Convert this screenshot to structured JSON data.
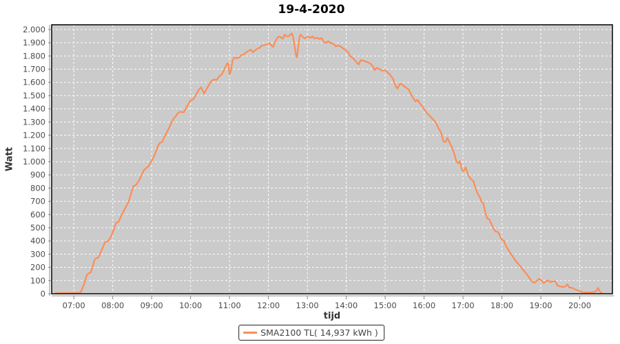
{
  "colors": {
    "page_bg": "#ffffff",
    "plot_bg": "#cbcbcb",
    "grid": "#ffffff",
    "line": "#fb8d55",
    "tick_text": "#4a4a4a",
    "axis_line": "#888888",
    "plot_border": "#000000"
  },
  "chart_data": {
    "type": "line",
    "title": "19-4-2020",
    "xlabel": "tijd",
    "ylabel": "Watt",
    "x_axis": {
      "min_hour": 6.43,
      "max_hour": 20.84,
      "tick_hours": [
        7,
        8,
        9,
        10,
        11,
        12,
        13,
        14,
        15,
        16,
        17,
        18,
        19,
        20
      ],
      "tick_labels": [
        "07:00",
        "08:00",
        "09:00",
        "10:00",
        "11:00",
        "12:00",
        "13:00",
        "14:00",
        "15:00",
        "16:00",
        "17:00",
        "18:00",
        "19:00",
        "20:00"
      ]
    },
    "y_axis": {
      "min": 0,
      "max": 2036,
      "tick_values": [
        0,
        100,
        200,
        300,
        400,
        500,
        600,
        700,
        800,
        900,
        1000,
        1100,
        1200,
        1300,
        1400,
        1500,
        1600,
        1700,
        1800,
        1900,
        2000
      ],
      "tick_labels": [
        "0",
        "100",
        "200",
        "300",
        "400",
        "500",
        "600",
        "700",
        "800",
        "900",
        "1.000",
        "1.100",
        "1.200",
        "1.300",
        "1.400",
        "1.500",
        "1.600",
        "1.700",
        "1.800",
        "1.900",
        "2.000"
      ]
    },
    "grid": {
      "horizontal": true,
      "vertical": true,
      "style": "white-dashed"
    },
    "legend": {
      "position": "bottom-center",
      "label": "SMA2100 TL( 14,937 kWh )"
    },
    "series": [
      {
        "name": "SMA2100 TL( 14,937 kWh )",
        "color": "#fb8d55",
        "points": [
          [
            6.53,
            5
          ],
          [
            6.7,
            5
          ],
          [
            6.9,
            5
          ],
          [
            7.05,
            5
          ],
          [
            7.17,
            8
          ],
          [
            7.22,
            40
          ],
          [
            7.27,
            80
          ],
          [
            7.3,
            105
          ],
          [
            7.33,
            140
          ],
          [
            7.38,
            155
          ],
          [
            7.43,
            160
          ],
          [
            7.48,
            200
          ],
          [
            7.53,
            255
          ],
          [
            7.58,
            270
          ],
          [
            7.63,
            275
          ],
          [
            7.7,
            320
          ],
          [
            7.75,
            355
          ],
          [
            7.8,
            390
          ],
          [
            7.88,
            398
          ],
          [
            7.95,
            430
          ],
          [
            8.0,
            465
          ],
          [
            8.05,
            505
          ],
          [
            8.08,
            535
          ],
          [
            8.15,
            545
          ],
          [
            8.22,
            590
          ],
          [
            8.28,
            625
          ],
          [
            8.35,
            665
          ],
          [
            8.42,
            705
          ],
          [
            8.48,
            770
          ],
          [
            8.53,
            815
          ],
          [
            8.6,
            825
          ],
          [
            8.68,
            860
          ],
          [
            8.75,
            905
          ],
          [
            8.8,
            935
          ],
          [
            8.85,
            950
          ],
          [
            8.92,
            965
          ],
          [
            9.0,
            1005
          ],
          [
            9.08,
            1055
          ],
          [
            9.15,
            1110
          ],
          [
            9.2,
            1140
          ],
          [
            9.27,
            1150
          ],
          [
            9.35,
            1200
          ],
          [
            9.43,
            1245
          ],
          [
            9.5,
            1290
          ],
          [
            9.55,
            1320
          ],
          [
            9.62,
            1345
          ],
          [
            9.68,
            1370
          ],
          [
            9.75,
            1378
          ],
          [
            9.82,
            1372
          ],
          [
            9.88,
            1405
          ],
          [
            9.95,
            1440
          ],
          [
            10.0,
            1465
          ],
          [
            10.07,
            1472
          ],
          [
            10.13,
            1500
          ],
          [
            10.2,
            1540
          ],
          [
            10.27,
            1562
          ],
          [
            10.3,
            1545
          ],
          [
            10.35,
            1515
          ],
          [
            10.42,
            1555
          ],
          [
            10.48,
            1585
          ],
          [
            10.53,
            1610
          ],
          [
            10.6,
            1622
          ],
          [
            10.67,
            1618
          ],
          [
            10.73,
            1645
          ],
          [
            10.8,
            1660
          ],
          [
            10.87,
            1700
          ],
          [
            10.93,
            1740
          ],
          [
            10.97,
            1745
          ],
          [
            11.0,
            1660
          ],
          [
            11.03,
            1680
          ],
          [
            11.08,
            1765
          ],
          [
            11.12,
            1790
          ],
          [
            11.18,
            1782
          ],
          [
            11.25,
            1790
          ],
          [
            11.3,
            1805
          ],
          [
            11.37,
            1812
          ],
          [
            11.43,
            1828
          ],
          [
            11.5,
            1840
          ],
          [
            11.55,
            1848
          ],
          [
            11.6,
            1828
          ],
          [
            11.65,
            1840
          ],
          [
            11.72,
            1856
          ],
          [
            11.78,
            1862
          ],
          [
            11.83,
            1878
          ],
          [
            11.9,
            1882
          ],
          [
            11.97,
            1888
          ],
          [
            12.03,
            1898
          ],
          [
            12.08,
            1878
          ],
          [
            12.12,
            1868
          ],
          [
            12.18,
            1910
          ],
          [
            12.23,
            1938
          ],
          [
            12.28,
            1948
          ],
          [
            12.33,
            1938
          ],
          [
            12.37,
            1930
          ],
          [
            12.42,
            1962
          ],
          [
            12.45,
            1950
          ],
          [
            12.5,
            1948
          ],
          [
            12.55,
            1955
          ],
          [
            12.6,
            1972
          ],
          [
            12.63,
            1950
          ],
          [
            12.67,
            1880
          ],
          [
            12.7,
            1820
          ],
          [
            12.73,
            1790
          ],
          [
            12.77,
            1872
          ],
          [
            12.8,
            1945
          ],
          [
            12.83,
            1962
          ],
          [
            12.88,
            1945
          ],
          [
            12.93,
            1932
          ],
          [
            12.98,
            1940
          ],
          [
            13.03,
            1945
          ],
          [
            13.08,
            1938
          ],
          [
            13.13,
            1948
          ],
          [
            13.18,
            1932
          ],
          [
            13.25,
            1938
          ],
          [
            13.3,
            1928
          ],
          [
            13.37,
            1934
          ],
          [
            13.43,
            1905
          ],
          [
            13.48,
            1898
          ],
          [
            13.53,
            1912
          ],
          [
            13.6,
            1898
          ],
          [
            13.67,
            1893
          ],
          [
            13.73,
            1872
          ],
          [
            13.8,
            1880
          ],
          [
            13.87,
            1868
          ],
          [
            13.93,
            1855
          ],
          [
            14.0,
            1840
          ],
          [
            14.05,
            1828
          ],
          [
            14.1,
            1800
          ],
          [
            14.15,
            1788
          ],
          [
            14.2,
            1775
          ],
          [
            14.27,
            1750
          ],
          [
            14.32,
            1735
          ],
          [
            14.37,
            1768
          ],
          [
            14.43,
            1765
          ],
          [
            14.5,
            1758
          ],
          [
            14.57,
            1750
          ],
          [
            14.63,
            1740
          ],
          [
            14.68,
            1722
          ],
          [
            14.73,
            1693
          ],
          [
            14.78,
            1710
          ],
          [
            14.85,
            1702
          ],
          [
            14.92,
            1688
          ],
          [
            14.98,
            1692
          ],
          [
            15.05,
            1680
          ],
          [
            15.12,
            1660
          ],
          [
            15.2,
            1628
          ],
          [
            15.27,
            1572
          ],
          [
            15.32,
            1553
          ],
          [
            15.38,
            1592
          ],
          [
            15.45,
            1580
          ],
          [
            15.52,
            1562
          ],
          [
            15.6,
            1548
          ],
          [
            15.67,
            1508
          ],
          [
            15.73,
            1478
          ],
          [
            15.78,
            1455
          ],
          [
            15.83,
            1468
          ],
          [
            15.88,
            1445
          ],
          [
            15.95,
            1420
          ],
          [
            16.0,
            1398
          ],
          [
            16.08,
            1365
          ],
          [
            16.15,
            1345
          ],
          [
            16.22,
            1322
          ],
          [
            16.3,
            1298
          ],
          [
            16.37,
            1252
          ],
          [
            16.43,
            1225
          ],
          [
            16.5,
            1152
          ],
          [
            16.55,
            1148
          ],
          [
            16.6,
            1180
          ],
          [
            16.67,
            1135
          ],
          [
            16.73,
            1102
          ],
          [
            16.78,
            1055
          ],
          [
            16.83,
            1002
          ],
          [
            16.88,
            988
          ],
          [
            16.92,
            1005
          ],
          [
            16.97,
            938
          ],
          [
            17.02,
            928
          ],
          [
            17.07,
            958
          ],
          [
            17.13,
            902
          ],
          [
            17.2,
            868
          ],
          [
            17.27,
            852
          ],
          [
            17.32,
            800
          ],
          [
            17.38,
            758
          ],
          [
            17.43,
            732
          ],
          [
            17.48,
            695
          ],
          [
            17.52,
            688
          ],
          [
            17.57,
            622
          ],
          [
            17.62,
            572
          ],
          [
            17.68,
            562
          ],
          [
            17.73,
            528
          ],
          [
            17.78,
            498
          ],
          [
            17.83,
            472
          ],
          [
            17.9,
            468
          ],
          [
            17.95,
            438
          ],
          [
            18.0,
            408
          ],
          [
            18.05,
            402
          ],
          [
            18.1,
            362
          ],
          [
            18.17,
            330
          ],
          [
            18.23,
            302
          ],
          [
            18.3,
            272
          ],
          [
            18.37,
            242
          ],
          [
            18.43,
            222
          ],
          [
            18.5,
            200
          ],
          [
            18.57,
            172
          ],
          [
            18.63,
            152
          ],
          [
            18.7,
            122
          ],
          [
            18.77,
            95
          ],
          [
            18.83,
            82
          ],
          [
            18.9,
            100
          ],
          [
            18.97,
            115
          ],
          [
            19.02,
            95
          ],
          [
            19.08,
            82
          ],
          [
            19.13,
            95
          ],
          [
            19.18,
            102
          ],
          [
            19.25,
            88
          ],
          [
            19.3,
            95
          ],
          [
            19.37,
            95
          ],
          [
            19.43,
            62
          ],
          [
            19.5,
            55
          ],
          [
            19.57,
            52
          ],
          [
            19.63,
            55
          ],
          [
            19.68,
            72
          ],
          [
            19.73,
            48
          ],
          [
            19.8,
            45
          ],
          [
            19.87,
            35
          ],
          [
            19.93,
            28
          ],
          [
            20.0,
            22
          ],
          [
            20.07,
            12
          ],
          [
            20.15,
            10
          ],
          [
            20.25,
            10
          ],
          [
            20.35,
            12
          ],
          [
            20.42,
            18
          ],
          [
            20.47,
            45
          ],
          [
            20.52,
            15
          ],
          [
            20.57,
            6
          ]
        ]
      }
    ]
  }
}
